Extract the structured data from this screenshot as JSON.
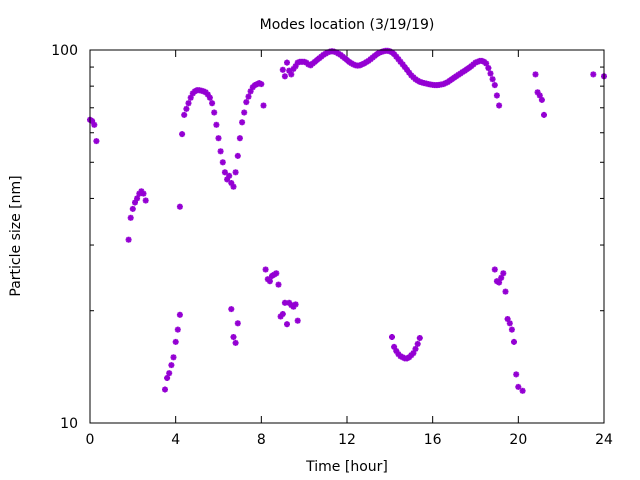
{
  "chart_data": {
    "type": "scatter",
    "title": "Modes location (3/19/19)",
    "xlabel": "Time [hour]",
    "ylabel": "Particle size [nm]",
    "xlim": [
      0,
      24
    ],
    "ylim": [
      10,
      100
    ],
    "yscale": "log",
    "x_ticks": [
      "0",
      "4",
      "8",
      "12",
      "16",
      "20",
      "24"
    ],
    "y_ticks": [
      "10",
      "100"
    ],
    "grid": false,
    "marker_color": "#9400d3",
    "series": [
      {
        "points": [
          [
            0.0,
            65.0
          ],
          [
            0.1,
            64.5
          ],
          [
            0.2,
            63.0
          ],
          [
            0.3,
            57.0
          ],
          [
            1.8,
            31.0
          ],
          [
            1.9,
            35.5
          ],
          [
            2.0,
            37.5
          ],
          [
            2.1,
            39.0
          ],
          [
            2.2,
            40.0
          ],
          [
            2.3,
            41.2
          ],
          [
            2.4,
            41.8
          ],
          [
            2.5,
            41.2
          ],
          [
            2.6,
            39.5
          ],
          [
            3.5,
            12.3
          ],
          [
            3.6,
            13.2
          ],
          [
            3.7,
            13.6
          ],
          [
            3.8,
            14.3
          ],
          [
            3.9,
            15.0
          ],
          [
            4.0,
            16.5
          ],
          [
            4.1,
            17.8
          ],
          [
            4.2,
            19.5
          ],
          [
            4.2,
            38.0
          ],
          [
            4.3,
            59.5
          ],
          [
            4.4,
            67.0
          ],
          [
            4.5,
            69.5
          ],
          [
            4.6,
            72.0
          ],
          [
            4.7,
            74.5
          ],
          [
            4.8,
            76.5
          ],
          [
            4.9,
            77.5
          ],
          [
            5.0,
            78.0
          ],
          [
            5.1,
            78.0
          ],
          [
            5.2,
            77.8
          ],
          [
            5.3,
            77.5
          ],
          [
            5.4,
            77.0
          ],
          [
            5.5,
            76.0
          ],
          [
            5.6,
            74.5
          ],
          [
            5.7,
            72.0
          ],
          [
            5.8,
            68.0
          ],
          [
            5.9,
            63.0
          ],
          [
            6.0,
            58.0
          ],
          [
            6.1,
            53.5
          ],
          [
            6.2,
            50.0
          ],
          [
            6.3,
            47.0
          ],
          [
            6.4,
            45.0
          ],
          [
            6.5,
            46.0
          ],
          [
            6.6,
            44.0
          ],
          [
            6.7,
            43.0
          ],
          [
            6.8,
            47.0
          ],
          [
            6.9,
            52.0
          ],
          [
            7.0,
            58.0
          ],
          [
            7.1,
            64.0
          ],
          [
            7.2,
            68.0
          ],
          [
            7.3,
            72.5
          ],
          [
            7.4,
            75.0
          ],
          [
            7.5,
            77.5
          ],
          [
            7.6,
            79.5
          ],
          [
            7.7,
            80.5
          ],
          [
            7.8,
            81.0
          ],
          [
            7.9,
            81.5
          ],
          [
            8.0,
            81.0
          ],
          [
            8.1,
            71.0
          ],
          [
            6.6,
            20.2
          ],
          [
            6.7,
            17.0
          ],
          [
            6.8,
            16.4
          ],
          [
            6.9,
            18.5
          ],
          [
            8.2,
            25.8
          ],
          [
            8.3,
            24.3
          ],
          [
            8.4,
            24.0
          ],
          [
            8.5,
            24.8
          ],
          [
            8.6,
            25.0
          ],
          [
            8.7,
            25.2
          ],
          [
            8.8,
            23.5
          ],
          [
            8.9,
            19.3
          ],
          [
            9.0,
            19.6
          ],
          [
            9.1,
            21.0
          ],
          [
            9.2,
            18.4
          ],
          [
            9.3,
            21.0
          ],
          [
            9.4,
            20.7
          ],
          [
            9.5,
            20.5
          ],
          [
            9.6,
            20.8
          ],
          [
            9.7,
            18.8
          ],
          [
            9.0,
            88.5
          ],
          [
            9.1,
            85.0
          ],
          [
            9.2,
            92.5
          ],
          [
            9.3,
            88.0
          ],
          [
            9.4,
            86.0
          ],
          [
            9.5,
            89.0
          ],
          [
            9.6,
            90.5
          ],
          [
            9.7,
            92.5
          ],
          [
            9.8,
            93.0
          ],
          [
            9.9,
            93.0
          ],
          [
            10.0,
            93.0
          ],
          [
            10.1,
            92.5
          ],
          [
            10.2,
            91.5
          ],
          [
            10.3,
            91.0
          ],
          [
            10.4,
            92.0
          ],
          [
            10.5,
            93.0
          ],
          [
            10.6,
            94.0
          ],
          [
            10.7,
            95.0
          ],
          [
            10.8,
            96.0
          ],
          [
            10.9,
            97.0
          ],
          [
            11.0,
            97.8
          ],
          [
            11.1,
            98.5
          ],
          [
            11.2,
            99.0
          ],
          [
            11.3,
            99.2
          ],
          [
            11.4,
            99.0
          ],
          [
            11.5,
            98.5
          ],
          [
            11.6,
            97.8
          ],
          [
            11.7,
            97.0
          ],
          [
            11.8,
            96.0
          ],
          [
            11.9,
            95.0
          ],
          [
            12.0,
            94.0
          ],
          [
            12.1,
            93.0
          ],
          [
            12.2,
            92.2
          ],
          [
            12.3,
            91.5
          ],
          [
            12.4,
            91.0
          ],
          [
            12.5,
            90.8
          ],
          [
            12.6,
            91.0
          ],
          [
            12.7,
            91.5
          ],
          [
            12.8,
            92.0
          ],
          [
            12.9,
            92.8
          ],
          [
            13.0,
            93.5
          ],
          [
            13.1,
            94.5
          ],
          [
            13.2,
            95.5
          ],
          [
            13.3,
            96.5
          ],
          [
            13.4,
            97.5
          ],
          [
            13.5,
            98.2
          ],
          [
            13.6,
            98.8
          ],
          [
            13.7,
            99.2
          ],
          [
            13.8,
            99.5
          ],
          [
            13.9,
            99.5
          ],
          [
            14.0,
            99.2
          ],
          [
            14.1,
            98.5
          ],
          [
            14.2,
            97.5
          ],
          [
            14.3,
            96.0
          ],
          [
            14.4,
            94.5
          ],
          [
            14.5,
            93.0
          ],
          [
            14.6,
            91.5
          ],
          [
            14.7,
            90.0
          ],
          [
            14.8,
            88.5
          ],
          [
            14.9,
            87.0
          ],
          [
            15.0,
            85.5
          ],
          [
            15.1,
            84.5
          ],
          [
            15.2,
            83.5
          ],
          [
            15.3,
            82.8
          ],
          [
            15.4,
            82.2
          ],
          [
            15.5,
            81.8
          ],
          [
            15.6,
            81.5
          ],
          [
            15.7,
            81.3
          ],
          [
            15.8,
            81.0
          ],
          [
            15.9,
            80.8
          ],
          [
            16.0,
            80.6
          ],
          [
            16.1,
            80.5
          ],
          [
            16.2,
            80.5
          ],
          [
            16.3,
            80.6
          ],
          [
            16.4,
            80.8
          ],
          [
            16.5,
            81.0
          ],
          [
            16.6,
            81.5
          ],
          [
            16.7,
            82.0
          ],
          [
            16.8,
            82.8
          ],
          [
            16.9,
            83.5
          ],
          [
            17.0,
            84.3
          ],
          [
            17.1,
            85.0
          ],
          [
            17.2,
            85.8
          ],
          [
            17.3,
            86.5
          ],
          [
            17.4,
            87.3
          ],
          [
            17.5,
            88.0
          ],
          [
            17.6,
            88.8
          ],
          [
            17.7,
            89.6
          ],
          [
            17.8,
            90.5
          ],
          [
            17.9,
            91.5
          ],
          [
            18.0,
            92.5
          ],
          [
            18.1,
            93.0
          ],
          [
            18.2,
            93.5
          ],
          [
            18.3,
            93.5
          ],
          [
            18.4,
            93.0
          ],
          [
            18.5,
            92.0
          ],
          [
            18.6,
            89.5
          ],
          [
            18.7,
            86.5
          ],
          [
            18.8,
            83.5
          ],
          [
            18.9,
            80.5
          ],
          [
            19.0,
            75.5
          ],
          [
            19.1,
            71.0
          ],
          [
            14.1,
            17.0
          ],
          [
            14.2,
            16.0
          ],
          [
            14.3,
            15.6
          ],
          [
            14.4,
            15.3
          ],
          [
            14.5,
            15.1
          ],
          [
            14.6,
            15.0
          ],
          [
            14.7,
            14.9
          ],
          [
            14.8,
            14.9
          ],
          [
            14.9,
            15.0
          ],
          [
            15.0,
            15.2
          ],
          [
            15.1,
            15.4
          ],
          [
            15.2,
            15.8
          ],
          [
            15.3,
            16.3
          ],
          [
            15.4,
            16.9
          ],
          [
            18.9,
            25.8
          ],
          [
            19.0,
            24.0
          ],
          [
            19.1,
            23.8
          ],
          [
            19.2,
            24.5
          ],
          [
            19.3,
            25.2
          ],
          [
            19.4,
            22.5
          ],
          [
            19.5,
            19.0
          ],
          [
            19.6,
            18.5
          ],
          [
            19.7,
            17.8
          ],
          [
            19.8,
            16.5
          ],
          [
            19.9,
            13.5
          ],
          [
            20.0,
            12.5
          ],
          [
            20.2,
            12.2
          ],
          [
            20.8,
            86.0
          ],
          [
            20.9,
            77.0
          ],
          [
            21.0,
            75.5
          ],
          [
            21.1,
            73.5
          ],
          [
            21.2,
            67.0
          ],
          [
            23.5,
            86.0
          ],
          [
            24.0,
            85.0
          ]
        ]
      }
    ]
  }
}
